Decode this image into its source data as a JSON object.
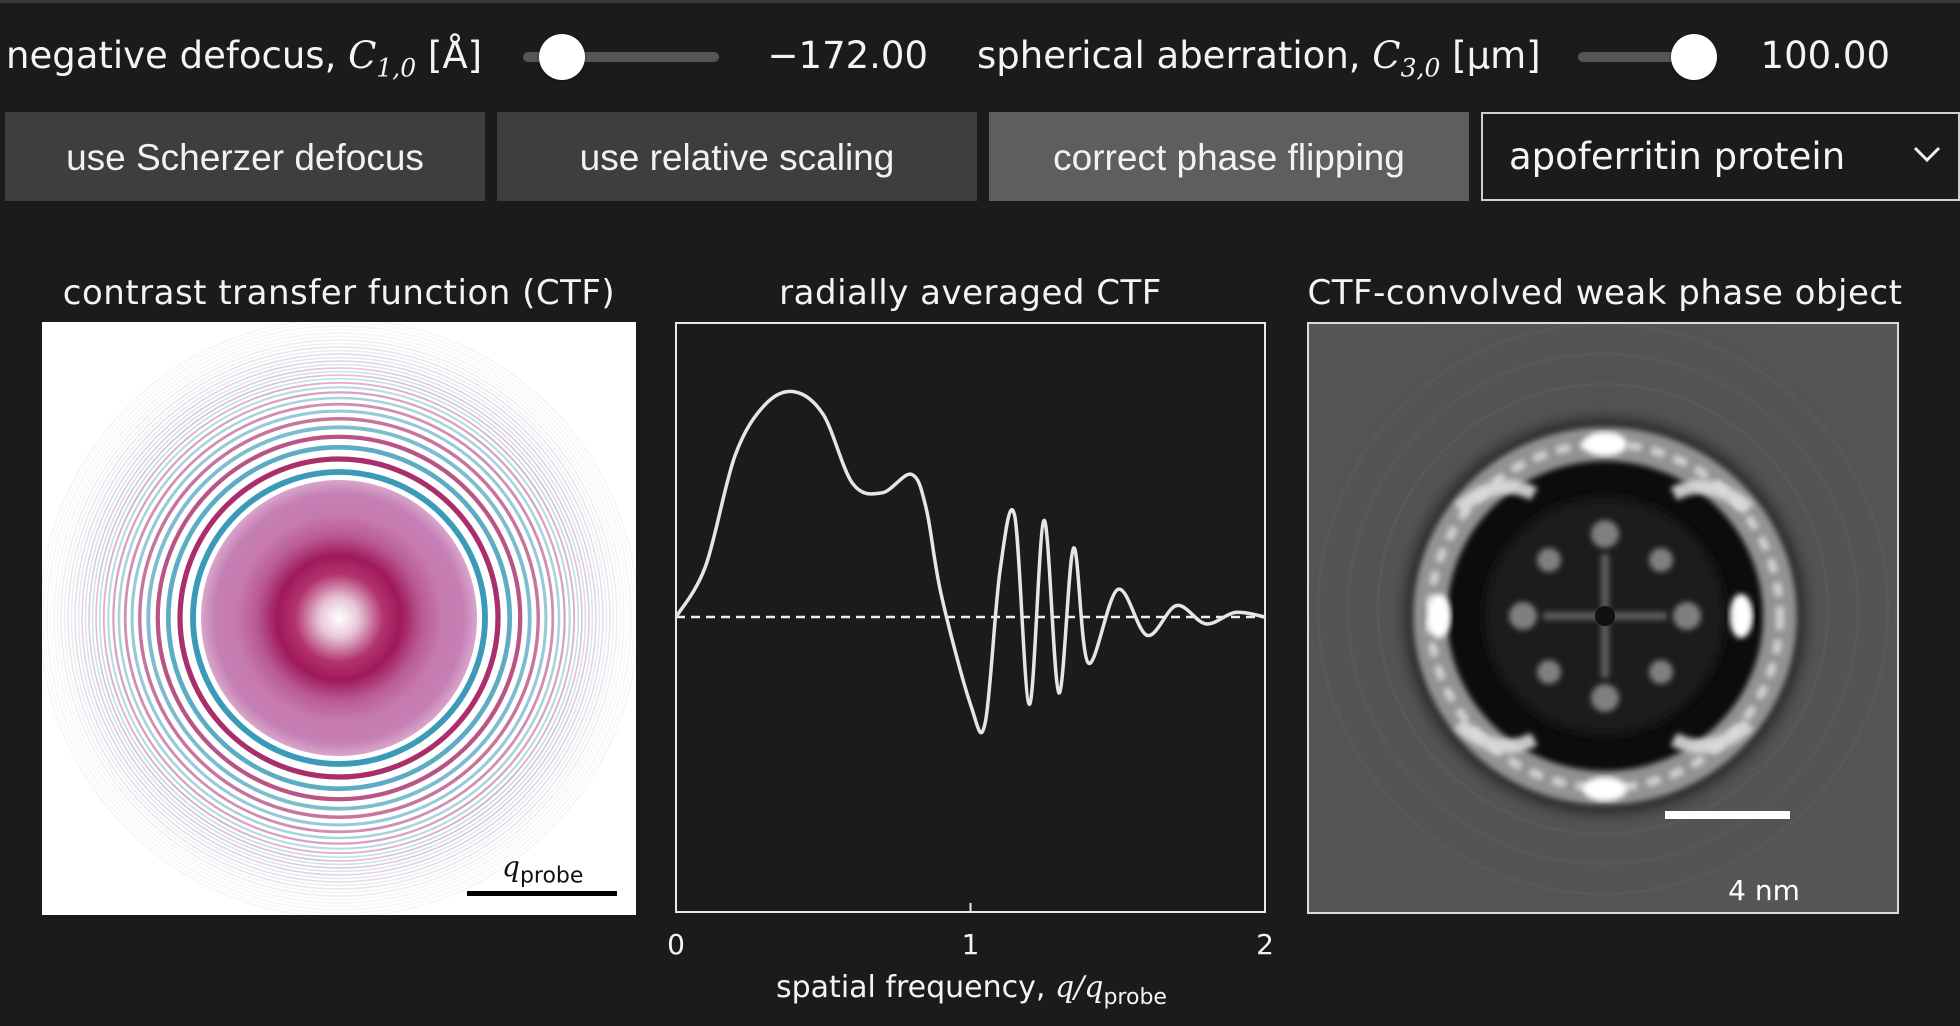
{
  "controls": {
    "defocus": {
      "label_prefix": "negative defocus, ",
      "symbol": "C",
      "subscript": "1,0",
      "unit": " [Å]",
      "value": "−172.00",
      "slider_fraction": 0.2
    },
    "aberration": {
      "label_prefix": "spherical aberration, ",
      "symbol": "C",
      "subscript": "3,0",
      "unit": " [µm]",
      "value": "100.00",
      "slider_fraction": 0.85
    }
  },
  "buttons": {
    "scherzer": "use Scherzer defocus",
    "relative": "use relative scaling",
    "phase_flip": "correct phase flipping"
  },
  "specimen_select": {
    "selected": "apoferritin protein"
  },
  "panels": {
    "ctf_title": "contrast transfer function (CTF)",
    "radial_title": "radially averaged CTF",
    "wpo_title": "CTF-convolved weak phase object",
    "ctf_scalebar_symbol": "q",
    "ctf_scalebar_sub": "probe",
    "wpo_scalebar": "4 nm"
  },
  "colors": {
    "background": "#1c1b1a",
    "button": "#3e3e3e",
    "button_active": "#5e5e5e",
    "ctf_positive": "#a0195a",
    "ctf_negative": "#3a9ab8",
    "curve": "#e6e6e6"
  },
  "chart_data": {
    "type": "line",
    "title": "radially averaged CTF",
    "xlabel_prefix": "spatial frequency, ",
    "xlabel_math": "q/q",
    "xlabel_sub": "probe",
    "ylabel": "",
    "xlim": [
      0,
      2
    ],
    "ylim": [
      -1,
      1
    ],
    "xticks": [
      "0",
      "1",
      "2"
    ],
    "zero_line": "dashed",
    "series": [
      {
        "x": [
          0,
          0.1,
          0.2,
          0.3,
          0.4,
          0.5,
          0.6,
          0.7,
          0.8,
          0.85,
          0.9,
          1.0,
          1.05,
          1.1,
          1.15,
          1.2,
          1.25,
          1.3,
          1.35,
          1.4,
          1.5,
          1.6,
          1.7,
          1.8,
          1.9,
          2.0
        ],
        "y": [
          0,
          0.22,
          0.7,
          0.92,
          0.98,
          0.88,
          0.58,
          0.54,
          0.62,
          0.47,
          0.1,
          -0.38,
          -0.46,
          0.2,
          0.44,
          -0.38,
          0.42,
          -0.33,
          0.3,
          -0.2,
          0.12,
          -0.08,
          0.05,
          -0.03,
          0.02,
          0
        ]
      }
    ]
  }
}
